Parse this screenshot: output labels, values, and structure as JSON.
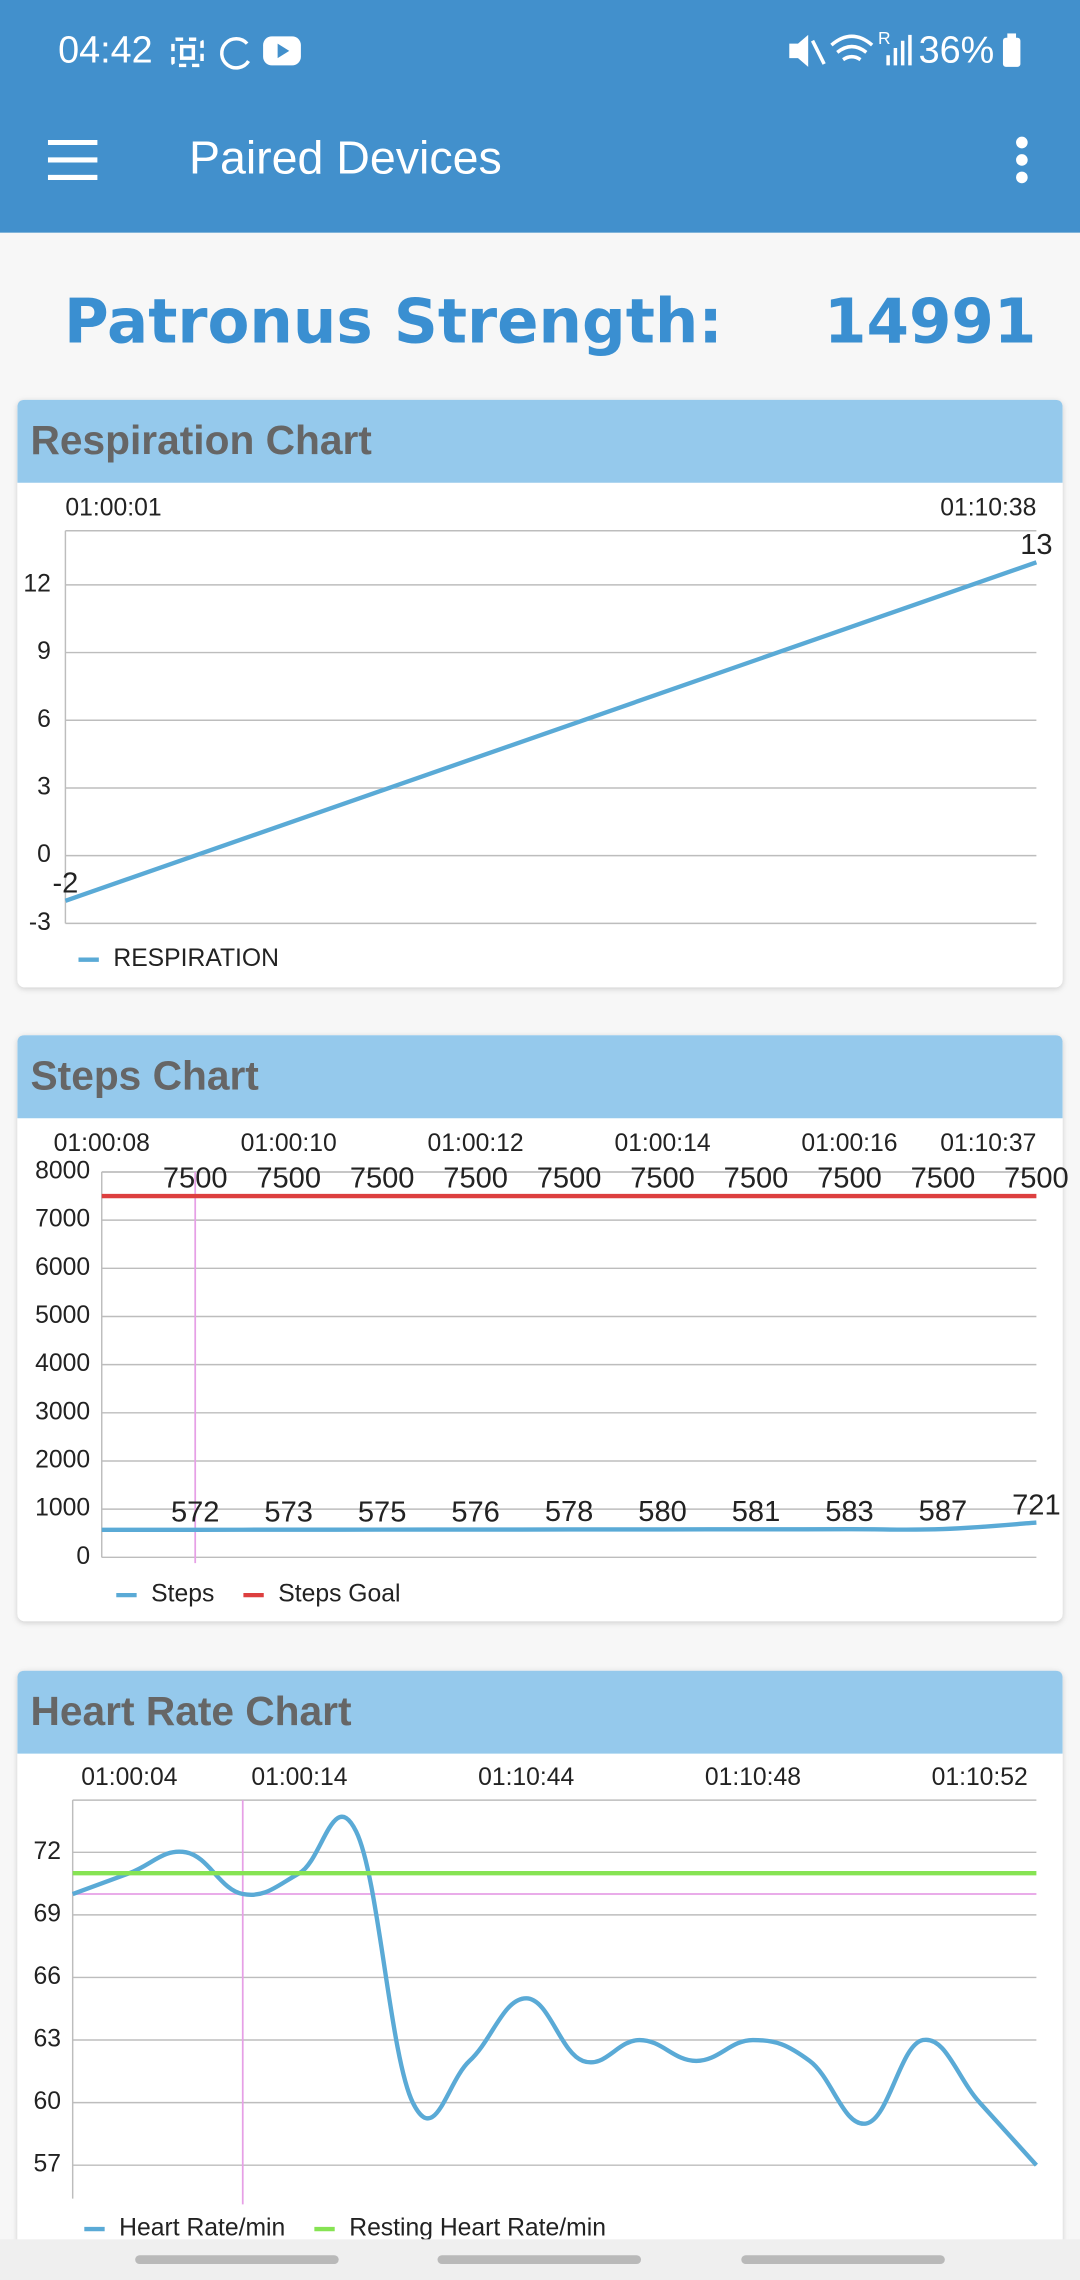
{
  "status_bar": {
    "time": "04:42",
    "battery": "36%"
  },
  "app_bar": {
    "title": "Paired Devices"
  },
  "header": {
    "label": "Patronus Strength:",
    "value": "14991"
  },
  "chart_data": [
    {
      "type": "line",
      "title": "Respiration Chart",
      "categories": [
        "01:00:01",
        "01:10:38"
      ],
      "series": [
        {
          "name": "RESPIRATION",
          "color": "#5aaad6",
          "values": [
            -2,
            13
          ]
        }
      ],
      "ylim": [
        -3,
        14.4
      ],
      "yticks": [
        -3,
        0,
        3,
        6,
        9,
        12
      ],
      "grid": true,
      "data_labels": true,
      "smooth": false
    },
    {
      "type": "line",
      "title": "Steps Chart",
      "categories": [
        "01:00:08",
        null,
        "01:00:10",
        null,
        "01:00:12",
        null,
        "01:00:14",
        null,
        "01:00:16",
        null,
        "01:10:37"
      ],
      "series": [
        {
          "name": "Steps",
          "color": "#5aaad6",
          "values": [
            570,
            572,
            573,
            575,
            576,
            578,
            580,
            581,
            583,
            587,
            721
          ]
        },
        {
          "name": "Steps Goal",
          "color": "#dd3f3f",
          "values": [
            7500,
            7500,
            7500,
            7500,
            7500,
            7500,
            7500,
            7500,
            7500,
            7500,
            7500
          ]
        }
      ],
      "ylim": [
        0,
        8000
      ],
      "yticks": [
        0,
        1000,
        2000,
        3000,
        4000,
        5000,
        6000,
        7000,
        8000
      ],
      "grid": true,
      "data_labels": true,
      "smooth": true
    },
    {
      "type": "line",
      "title": "Heart Rate Chart",
      "categories": [
        null,
        "01:00:04",
        null,
        null,
        "01:00:14",
        null,
        null,
        null,
        "01:10:44",
        null,
        null,
        null,
        "01:10:48",
        null,
        null,
        null,
        "01:10:52",
        null
      ],
      "series": [
        {
          "name": "Heart Rate/min",
          "color": "#5aaad6",
          "values": [
            70,
            71,
            72,
            70,
            71,
            73,
            60,
            62,
            65,
            62,
            63,
            62,
            63,
            62,
            59,
            63,
            60,
            57
          ]
        },
        {
          "name": "Resting Heart Rate/min",
          "color": "#86e353",
          "values": [
            71,
            71,
            71,
            71,
            71,
            71,
            71,
            71,
            71,
            71,
            71,
            71,
            71,
            71,
            71,
            71,
            71,
            71
          ]
        }
      ],
      "ylim": [
        55.4,
        74.5
      ],
      "yticks": [
        57,
        60,
        63,
        66,
        69,
        72
      ],
      "grid": true,
      "data_labels": false,
      "smooth": true
    }
  ]
}
